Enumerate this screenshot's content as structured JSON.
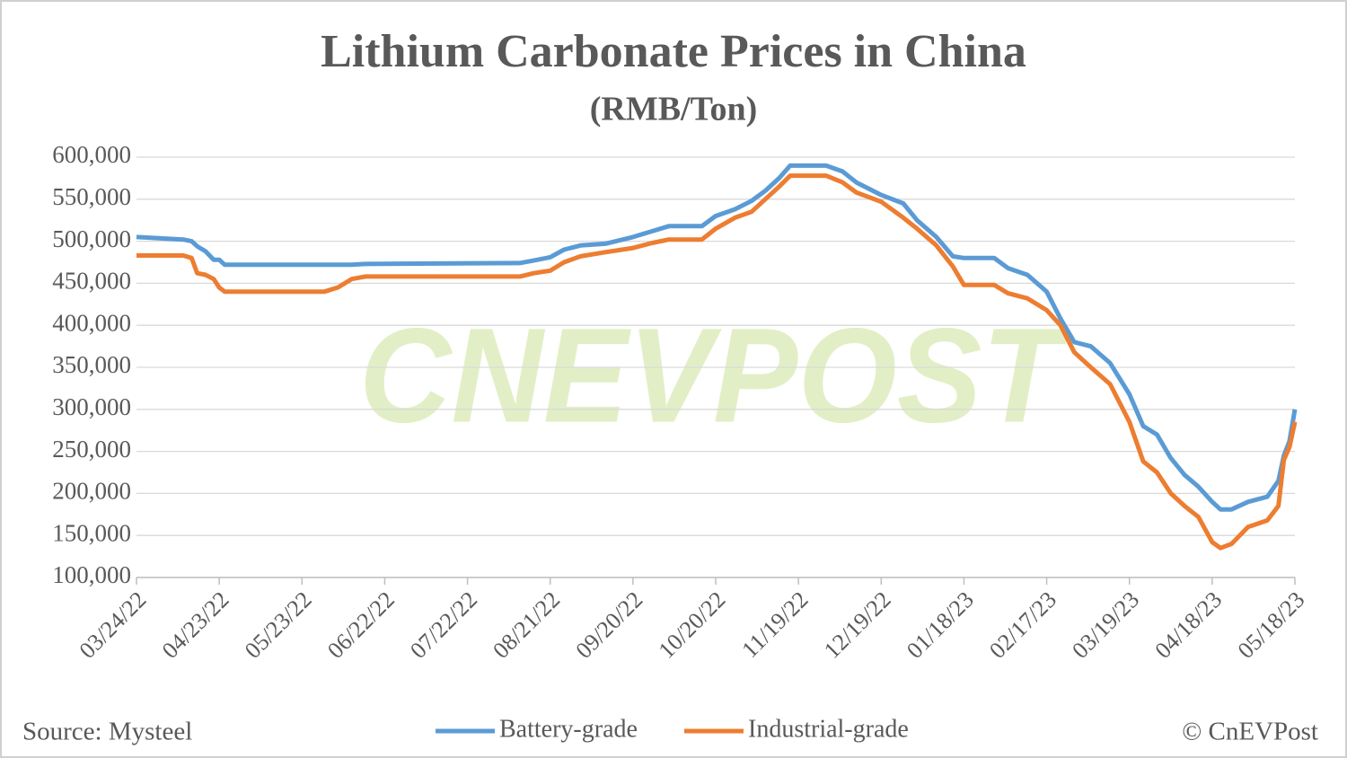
{
  "chart_data": {
    "type": "line",
    "title": "Lithium Carbonate Prices in China",
    "subtitle": "(RMB/Ton)",
    "source": "Source: Mysteel",
    "credit": "© CnEVPost",
    "watermark": "CNEVPOST",
    "grid": true,
    "legend": "bottom",
    "x": [
      "03/24/22",
      "04/10/22",
      "04/13/22",
      "04/15/22",
      "04/18/22",
      "04/21/22",
      "04/23/22",
      "04/25/22",
      "05/31/22",
      "06/05/22",
      "06/10/22",
      "06/15/22",
      "08/10/22",
      "08/15/22",
      "08/21/22",
      "08/26/22",
      "09/01/22",
      "09/10/22",
      "09/20/22",
      "09/27/22",
      "10/03/22",
      "10/15/22",
      "10/20/22",
      "10/27/22",
      "11/02/22",
      "11/07/22",
      "11/12/22",
      "11/16/22",
      "11/29/22",
      "12/05/22",
      "12/10/22",
      "12/19/22",
      "12/27/22",
      "01/01/23",
      "01/08/23",
      "01/14/23",
      "01/18/23",
      "01/29/23",
      "02/03/23",
      "02/10/23",
      "02/17/23",
      "02/22/23",
      "02/27/23",
      "03/05/23",
      "03/12/23",
      "03/19/23",
      "03/24/23",
      "03/29/23",
      "04/03/23",
      "04/08/23",
      "04/13/23",
      "04/18/23",
      "04/21/23",
      "04/25/23",
      "05/01/23",
      "05/08/23",
      "05/12/23",
      "05/14/23",
      "05/16/23",
      "05/18/23"
    ],
    "series": [
      {
        "name": "Battery-grade",
        "color": "#5b9bd5",
        "values": [
          505000,
          502000,
          500000,
          494000,
          488000,
          478000,
          478000,
          472000,
          472000,
          472000,
          472000,
          473000,
          474000,
          477000,
          481000,
          490000,
          495000,
          497000,
          505000,
          512000,
          518000,
          518000,
          530000,
          538000,
          548000,
          560000,
          575000,
          590000,
          590000,
          583000,
          570000,
          555000,
          545000,
          525000,
          505000,
          482000,
          480000,
          480000,
          468000,
          460000,
          440000,
          408000,
          380000,
          375000,
          355000,
          318000,
          280000,
          270000,
          242000,
          222000,
          208000,
          190000,
          181000,
          181000,
          190000,
          196000,
          215000,
          245000,
          262000,
          300000
        ]
      },
      {
        "name": "Industrial-grade",
        "color": "#ed7d31",
        "values": [
          483000,
          483000,
          480000,
          462000,
          460000,
          455000,
          445000,
          440000,
          440000,
          445000,
          455000,
          458000,
          458000,
          462000,
          465000,
          475000,
          482000,
          487000,
          492000,
          498000,
          502000,
          502000,
          515000,
          528000,
          535000,
          550000,
          565000,
          578000,
          578000,
          570000,
          558000,
          547000,
          528000,
          515000,
          495000,
          470000,
          448000,
          448000,
          438000,
          432000,
          418000,
          400000,
          368000,
          350000,
          330000,
          285000,
          238000,
          225000,
          200000,
          185000,
          172000,
          142000,
          135000,
          140000,
          160000,
          168000,
          185000,
          240000,
          255000,
          285000
        ]
      }
    ],
    "xlim": [
      "03/24/22",
      "05/18/23"
    ],
    "xticks": [
      "03/24/22",
      "04/23/22",
      "05/23/22",
      "06/22/22",
      "07/22/22",
      "08/21/22",
      "09/20/22",
      "10/20/22",
      "11/19/22",
      "12/19/22",
      "01/18/23",
      "02/17/23",
      "03/19/23",
      "04/18/23",
      "05/18/23"
    ],
    "ylim": [
      100000,
      600000
    ],
    "yticks": [
      {
        "value": 100000,
        "label": "100,000"
      },
      {
        "value": 150000,
        "label": "150,000"
      },
      {
        "value": 200000,
        "label": "200,000"
      },
      {
        "value": 250000,
        "label": "250,000"
      },
      {
        "value": 300000,
        "label": "300,000"
      },
      {
        "value": 350000,
        "label": "350,000"
      },
      {
        "value": 400000,
        "label": "400,000"
      },
      {
        "value": 450000,
        "label": "450,000"
      },
      {
        "value": 500000,
        "label": "500,000"
      },
      {
        "value": 550000,
        "label": "550,000"
      },
      {
        "value": 600000,
        "label": "600,000"
      }
    ]
  }
}
